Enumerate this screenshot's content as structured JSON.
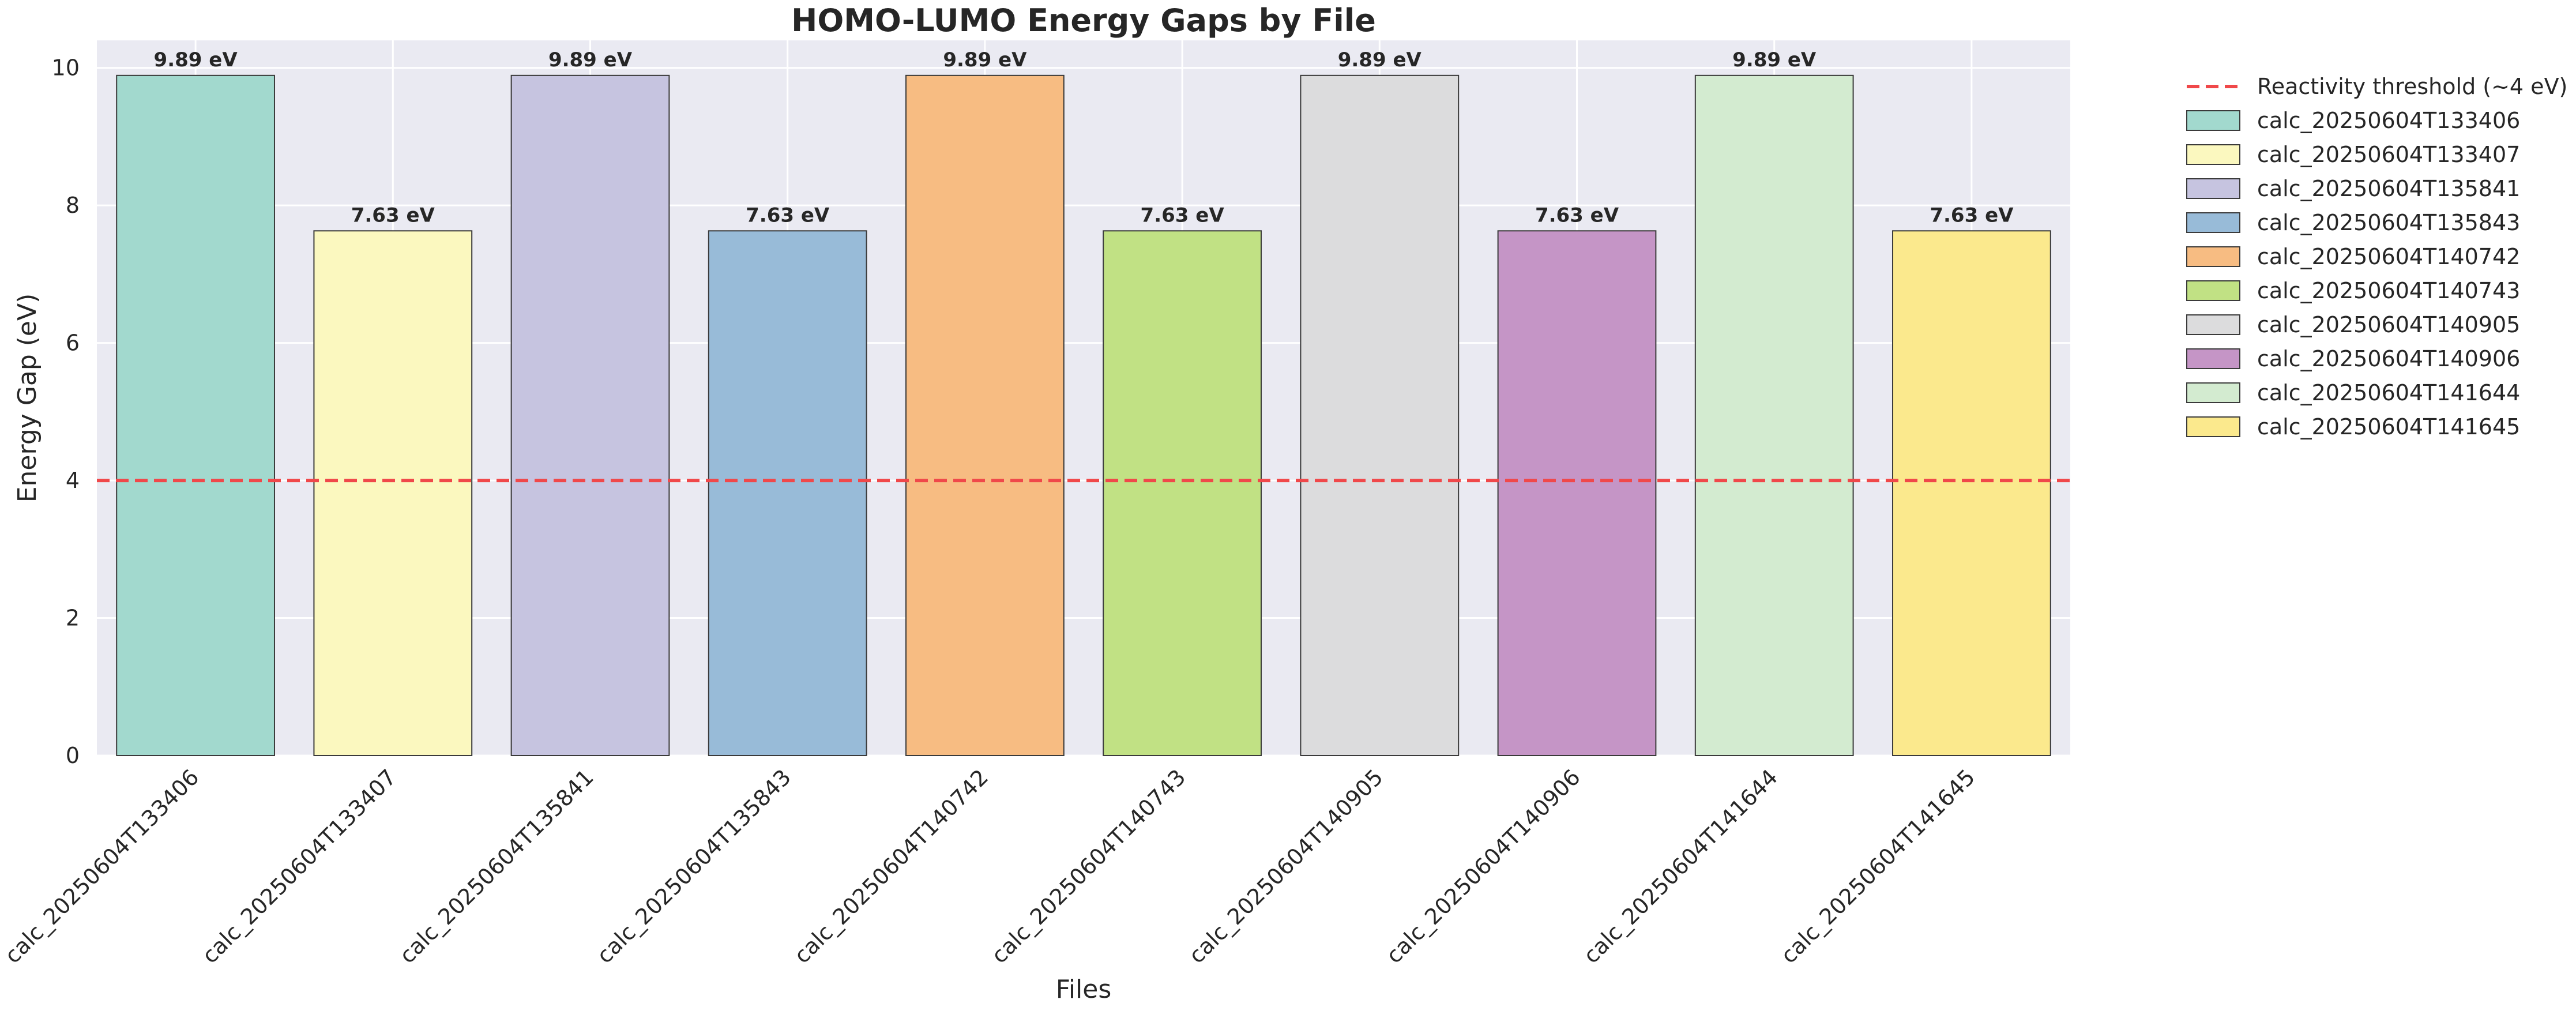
{
  "chart_data": {
    "type": "bar",
    "title": "HOMO-LUMO Energy Gaps by File",
    "xlabel": "Files",
    "ylabel": "Energy Gap (eV)",
    "ylim": [
      0,
      10.4
    ],
    "yticks": [
      0,
      2,
      4,
      6,
      8,
      10
    ],
    "grid": true,
    "legend_position": "outside-right",
    "categories": [
      "calc_20250604T133406",
      "calc_20250604T133407",
      "calc_20250604T135841",
      "calc_20250604T135843",
      "calc_20250604T140742",
      "calc_20250604T140743",
      "calc_20250604T140905",
      "calc_20250604T140906",
      "calc_20250604T141644",
      "calc_20250604T141645"
    ],
    "values": [
      9.89,
      7.63,
      9.89,
      7.63,
      9.89,
      7.63,
      9.89,
      7.63,
      9.89,
      7.63
    ],
    "data_labels": [
      "9.89 eV",
      "7.63 eV",
      "9.89 eV",
      "7.63 eV",
      "9.89 eV",
      "7.63 eV",
      "9.89 eV",
      "7.63 eV",
      "9.89 eV",
      "7.63 eV"
    ],
    "bar_colors": [
      "#a2d9ce",
      "#fbf8bf",
      "#c6c4e0",
      "#98bbd8",
      "#f7bc82",
      "#c1e184",
      "#dcdcdd",
      "#c595c6",
      "#d3ebd0",
      "#fbe98d"
    ],
    "reference_line": {
      "value": 4,
      "label": "Reactivity threshold (~4 eV)",
      "color": "#f0484a",
      "style": "dashed"
    },
    "legend": [
      "Reactivity threshold (~4 eV)",
      "calc_20250604T133406",
      "calc_20250604T133407",
      "calc_20250604T135841",
      "calc_20250604T135843",
      "calc_20250604T140742",
      "calc_20250604T140743",
      "calc_20250604T140905",
      "calc_20250604T140906",
      "calc_20250604T141644",
      "calc_20250604T141645"
    ],
    "colors": {
      "plot_background": "#eaeaf2",
      "grid": "#ffffff",
      "bar_edge": "#3a3a3a",
      "text": "#262626"
    }
  }
}
